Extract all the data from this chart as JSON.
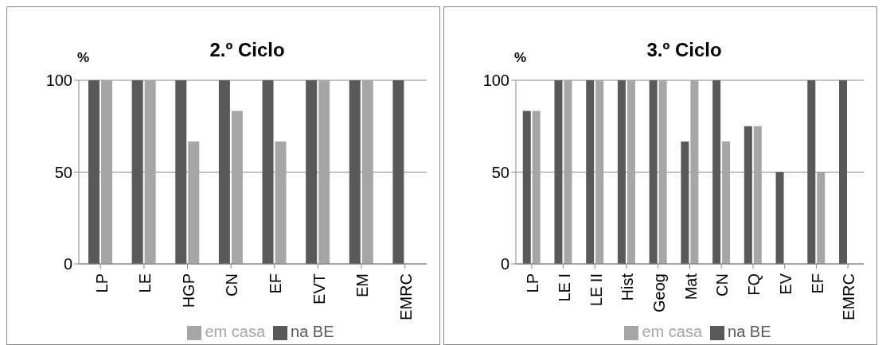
{
  "chart_data": [
    {
      "type": "bar",
      "title": "2.º Ciclo",
      "ylabel": "%",
      "categories": [
        "LP",
        "LE",
        "HGP",
        "CN",
        "EF",
        "EVT",
        "EM",
        "EMRC"
      ],
      "series": [
        {
          "name": "na BE",
          "color": "#595959",
          "values": [
            100,
            100,
            100,
            100,
            100,
            100,
            100,
            100
          ]
        },
        {
          "name": "em casa",
          "color": "#a6a6a6",
          "values": [
            100,
            100,
            66.7,
            83.3,
            66.7,
            100,
            100,
            null
          ]
        }
      ],
      "ylim": [
        0,
        100
      ],
      "yticks": [
        0,
        50,
        100
      ],
      "grid": "y",
      "legend": "bottom"
    },
    {
      "type": "bar",
      "title": "3.º Ciclo",
      "ylabel": "%",
      "categories": [
        "LP",
        "LE I",
        "LE II",
        "Hist",
        "Geog",
        "Mat",
        "CN",
        "FQ",
        "EV",
        "EF",
        "EMRC"
      ],
      "series": [
        {
          "name": "na BE",
          "color": "#595959",
          "values": [
            83.3,
            100,
            100,
            100,
            100,
            66.7,
            100,
            75,
            50,
            100,
            100
          ]
        },
        {
          "name": "em casa",
          "color": "#a6a6a6",
          "values": [
            83.3,
            100,
            100,
            100,
            100,
            100,
            66.7,
            75,
            null,
            50,
            null
          ]
        }
      ],
      "ylim": [
        0,
        100
      ],
      "yticks": [
        0,
        50,
        100
      ],
      "grid": "y",
      "legend": "bottom"
    }
  ]
}
